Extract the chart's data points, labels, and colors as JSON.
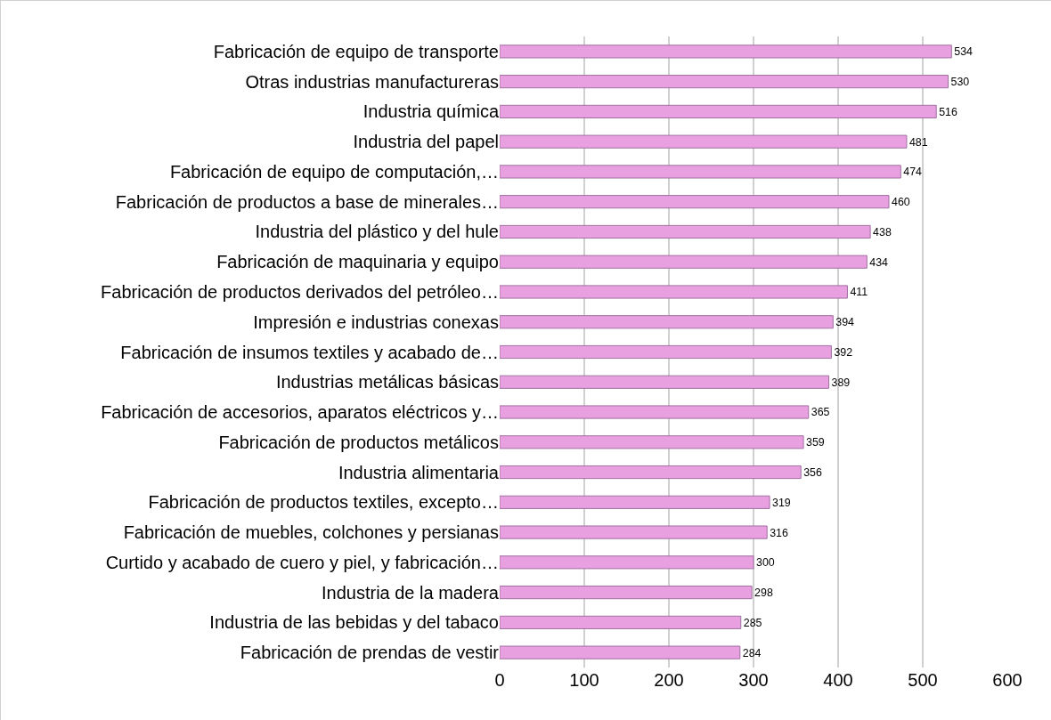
{
  "chart_data": {
    "type": "bar",
    "orientation": "horizontal",
    "categories": [
      "Fabricación de equipo de transporte",
      "Otras industrias manufactureras",
      "Industria química",
      "Industria del papel",
      "Fabricación de equipo de computación,…",
      "Fabricación de productos a base de minerales…",
      "Industria del plástico y del hule",
      "Fabricación de maquinaria y equipo",
      "Fabricación de productos derivados del petróleo…",
      "Impresión e industrias conexas",
      "Fabricación de insumos textiles y acabado de…",
      "Industrias metálicas básicas",
      "Fabricación de accesorios, aparatos eléctricos y…",
      "Fabricación de productos metálicos",
      "Industria alimentaria",
      "Fabricación de productos textiles, excepto…",
      "Fabricación de muebles, colchones y persianas",
      "Curtido y acabado de cuero y piel, y fabricación…",
      "Industria de la madera",
      "Industria de las bebidas y del tabaco",
      "Fabricación de prendas de vestir"
    ],
    "values": [
      534,
      530,
      516,
      481,
      474,
      460,
      438,
      434,
      411,
      394,
      392,
      389,
      365,
      359,
      356,
      319,
      316,
      300,
      298,
      285,
      284
    ],
    "color": "#e8a0e0",
    "data_labels": true,
    "xlim": [
      0,
      600
    ],
    "xticks": [
      0,
      100,
      200,
      300,
      400,
      500,
      600
    ],
    "grid": "x",
    "legend": false
  }
}
